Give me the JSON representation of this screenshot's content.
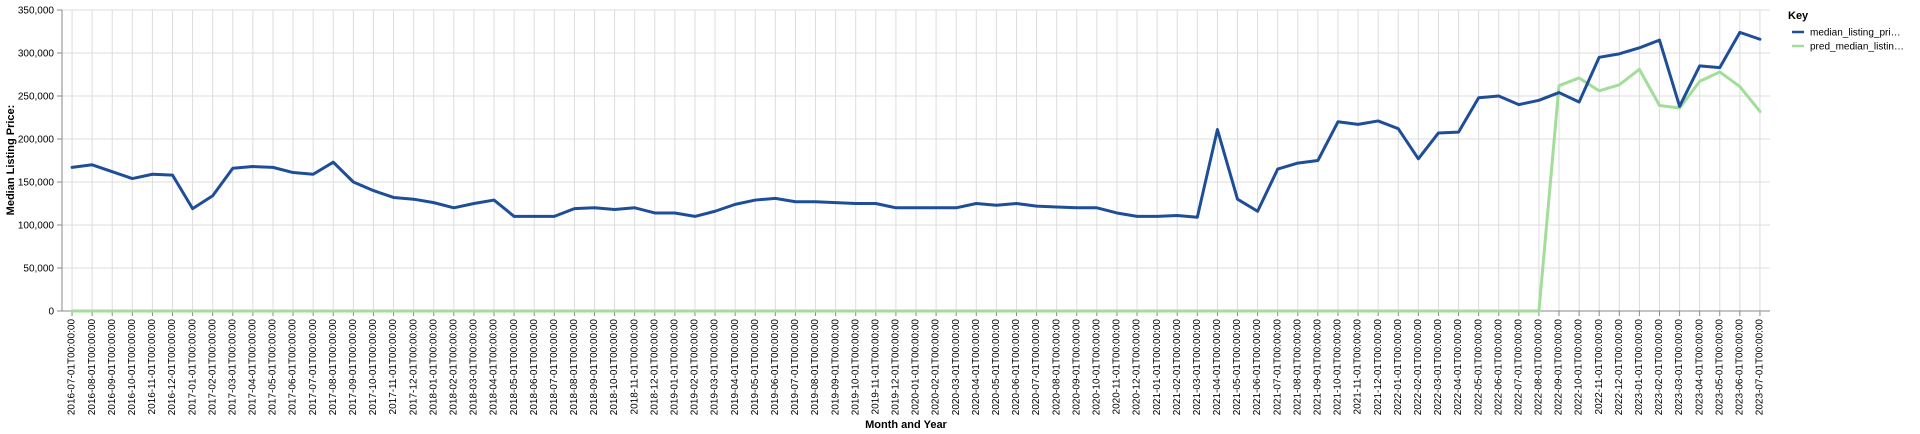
{
  "chart_data": {
    "type": "line",
    "xlabel": "Month and Year",
    "ylabel": "Median Listing Price:",
    "ylim": [
      0,
      350000
    ],
    "yticks": [
      "0",
      "50,000",
      "100,000",
      "150,000",
      "200,000",
      "250,000",
      "300,000",
      "350,000"
    ],
    "grid": true,
    "legend_placement": "top-right",
    "legend_title": "Key",
    "categories": [
      "2016-07-01T00:00:00",
      "2016-08-01T00:00:00",
      "2016-09-01T00:00:00",
      "2016-10-01T00:00:00",
      "2016-11-01T00:00:00",
      "2016-12-01T00:00:00",
      "2017-01-01T00:00:00",
      "2017-02-01T00:00:00",
      "2017-03-01T00:00:00",
      "2017-04-01T00:00:00",
      "2017-05-01T00:00:00",
      "2017-06-01T00:00:00",
      "2017-07-01T00:00:00",
      "2017-08-01T00:00:00",
      "2017-09-01T00:00:00",
      "2017-10-01T00:00:00",
      "2017-11-01T00:00:00",
      "2017-12-01T00:00:00",
      "2018-01-01T00:00:00",
      "2018-02-01T00:00:00",
      "2018-03-01T00:00:00",
      "2018-04-01T00:00:00",
      "2018-05-01T00:00:00",
      "2018-06-01T00:00:00",
      "2018-07-01T00:00:00",
      "2018-08-01T00:00:00",
      "2018-09-01T00:00:00",
      "2018-10-01T00:00:00",
      "2018-11-01T00:00:00",
      "2018-12-01T00:00:00",
      "2019-01-01T00:00:00",
      "2019-02-01T00:00:00",
      "2019-03-01T00:00:00",
      "2019-04-01T00:00:00",
      "2019-05-01T00:00:00",
      "2019-06-01T00:00:00",
      "2019-07-01T00:00:00",
      "2019-08-01T00:00:00",
      "2019-09-01T00:00:00",
      "2019-10-01T00:00:00",
      "2019-11-01T00:00:00",
      "2019-12-01T00:00:00",
      "2020-01-01T00:00:00",
      "2020-02-01T00:00:00",
      "2020-03-01T00:00:00",
      "2020-04-01T00:00:00",
      "2020-05-01T00:00:00",
      "2020-06-01T00:00:00",
      "2020-07-01T00:00:00",
      "2020-08-01T00:00:00",
      "2020-09-01T00:00:00",
      "2020-10-01T00:00:00",
      "2020-11-01T00:00:00",
      "2020-12-01T00:00:00",
      "2021-01-01T00:00:00",
      "2021-02-01T00:00:00",
      "2021-03-01T00:00:00",
      "2021-04-01T00:00:00",
      "2021-05-01T00:00:00",
      "2021-06-01T00:00:00",
      "2021-07-01T00:00:00",
      "2021-08-01T00:00:00",
      "2021-09-01T00:00:00",
      "2021-10-01T00:00:00",
      "2021-11-01T00:00:00",
      "2021-12-01T00:00:00",
      "2022-01-01T00:00:00",
      "2022-02-01T00:00:00",
      "2022-03-01T00:00:00",
      "2022-04-01T00:00:00",
      "2022-05-01T00:00:00",
      "2022-06-01T00:00:00",
      "2022-07-01T00:00:00",
      "2022-08-01T00:00:00",
      "2022-09-01T00:00:00",
      "2022-10-01T00:00:00",
      "2022-11-01T00:00:00",
      "2022-12-01T00:00:00",
      "2023-01-01T00:00:00",
      "2023-02-01T00:00:00",
      "2023-03-01T00:00:00",
      "2023-04-01T00:00:00",
      "2023-05-01T00:00:00",
      "2023-06-01T00:00:00",
      "2023-07-01T00:00:00"
    ],
    "series": [
      {
        "name": "median_listing_pri…",
        "color": "#1f4e99",
        "values": [
          167000,
          170000,
          162000,
          154000,
          159000,
          158000,
          119000,
          134000,
          166000,
          168000,
          167000,
          161000,
          159000,
          173000,
          150000,
          140000,
          132000,
          130000,
          126000,
          120000,
          125000,
          129000,
          110000,
          110000,
          110000,
          119000,
          120000,
          118000,
          120000,
          114000,
          114000,
          110000,
          116000,
          124000,
          129000,
          131000,
          127000,
          127000,
          126000,
          125000,
          125000,
          120000,
          120000,
          120000,
          120000,
          125000,
          123000,
          125000,
          122000,
          121000,
          120000,
          120000,
          114000,
          110000,
          110000,
          111000,
          109000,
          211000,
          130000,
          116000,
          165000,
          172000,
          175000,
          220000,
          217000,
          221000,
          212000,
          177000,
          207000,
          208000,
          248000,
          250000,
          240000,
          245000,
          254000,
          243000,
          295000,
          299000,
          306000,
          315000,
          238000,
          285000,
          283000,
          324000,
          316000
        ]
      },
      {
        "name": "pred_median_listin…",
        "color": "#a2dd9a",
        "values": [
          0,
          0,
          0,
          0,
          0,
          0,
          0,
          0,
          0,
          0,
          0,
          0,
          0,
          0,
          0,
          0,
          0,
          0,
          0,
          0,
          0,
          0,
          0,
          0,
          0,
          0,
          0,
          0,
          0,
          0,
          0,
          0,
          0,
          0,
          0,
          0,
          0,
          0,
          0,
          0,
          0,
          0,
          0,
          0,
          0,
          0,
          0,
          0,
          0,
          0,
          0,
          0,
          0,
          0,
          0,
          0,
          0,
          0,
          0,
          0,
          0,
          0,
          0,
          0,
          0,
          0,
          0,
          0,
          0,
          0,
          0,
          0,
          0,
          0,
          262000,
          271000,
          256000,
          263000,
          281000,
          239000,
          236000,
          267000,
          278000,
          261000,
          232000
        ]
      }
    ]
  }
}
